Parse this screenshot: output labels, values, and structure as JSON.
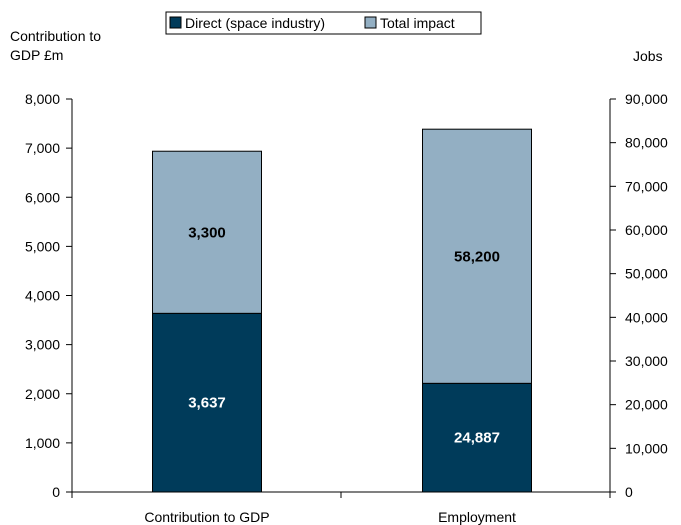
{
  "chart_data": {
    "type": "bar",
    "stacked": true,
    "categories": [
      "Contribution to GDP",
      "Employment"
    ],
    "series": [
      {
        "name": "Direct (space industry)",
        "color": "#003B5A",
        "label_color": "#ffffff",
        "values": [
          3637,
          24887
        ],
        "labels": [
          "3,637",
          "24,887"
        ]
      },
      {
        "name": "Total impact",
        "color": "#93AFC3",
        "label_color": "#000000",
        "values": [
          3300,
          58200
        ],
        "labels": [
          "3,300",
          "58,200"
        ]
      }
    ],
    "bar_axis": [
      "left",
      "right"
    ],
    "y_left": {
      "label_lines": [
        "Contribution to",
        "GDP £m"
      ],
      "ylim": [
        0,
        8000
      ],
      "ticks": [
        "0",
        "1,000",
        "2,000",
        "3,000",
        "4,000",
        "5,000",
        "6,000",
        "7,000",
        "8,000"
      ],
      "tick_values": [
        0,
        1000,
        2000,
        3000,
        4000,
        5000,
        6000,
        7000,
        8000
      ]
    },
    "y_right": {
      "label": "Jobs",
      "ylim": [
        0,
        90000
      ],
      "ticks": [
        "0",
        "10,000",
        "20,000",
        "30,000",
        "40,000",
        "50,000",
        "60,000",
        "70,000",
        "80,000",
        "90,000"
      ],
      "tick_values": [
        0,
        10000,
        20000,
        30000,
        40000,
        50000,
        60000,
        70000,
        80000,
        90000
      ]
    },
    "grid": false,
    "legend_position": "top"
  }
}
